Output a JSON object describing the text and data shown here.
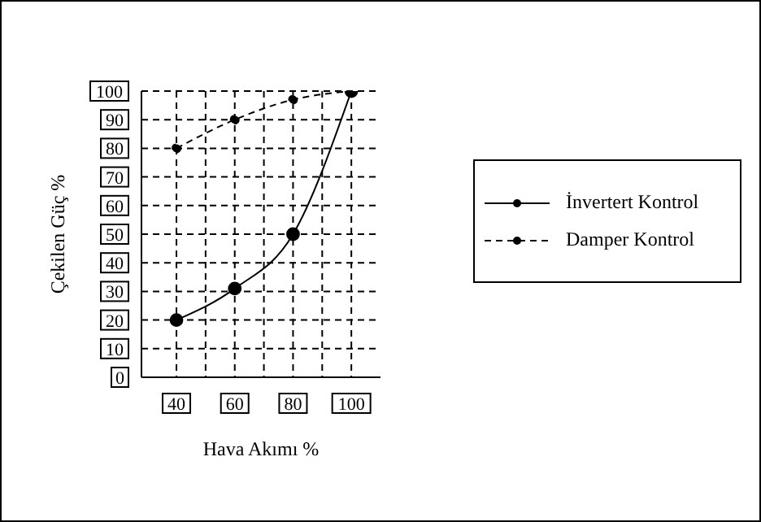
{
  "chart_data": {
    "type": "line",
    "xlabel": "Hava Akımı %",
    "ylabel": "Çekilen Güç %",
    "xlim": [
      28,
      110
    ],
    "xticks": [
      40,
      {
        "value": 50,
        "label": null
      },
      60,
      {
        "value": 70,
        "label": null
      },
      80,
      {
        "value": 90,
        "label": null
      },
      100
    ],
    "ylim": [
      0,
      100
    ],
    "yticks": [
      0,
      10,
      20,
      30,
      40,
      50,
      60,
      70,
      80,
      90,
      100
    ],
    "grid": true,
    "legend": "right",
    "marker": "circle",
    "series": [
      {
        "name": "İnvertert Kontrol",
        "color": "#000000",
        "line_style": "solid",
        "x": [
          40,
          60,
          80,
          100
        ],
        "values": [
          20,
          31,
          50,
          100
        ]
      },
      {
        "name": "Damper Kontrol",
        "color": "#000000",
        "line_style": "dashed",
        "x": [
          40,
          60,
          80,
          100
        ],
        "values": [
          80,
          90,
          97,
          100
        ]
      }
    ]
  }
}
